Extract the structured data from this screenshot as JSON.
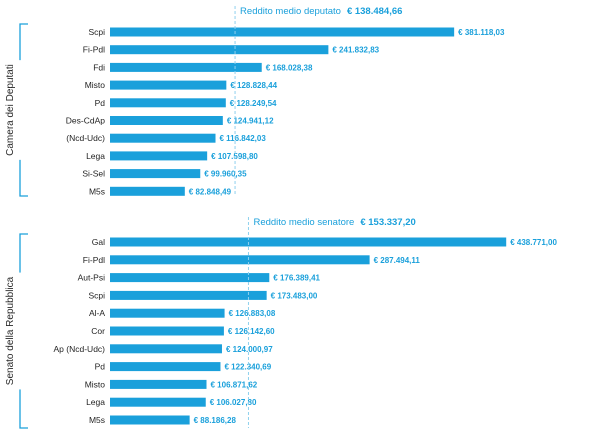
{
  "colors": {
    "bar": "#1aa0db",
    "bracket": "#1aa0db",
    "refline": "#8fd0ee"
  },
  "chart_data": [
    {
      "type": "bar",
      "orientation": "horizontal",
      "title": "Camera dei Deputati",
      "categories": [
        "Scpi",
        "Fi-Pdl",
        "Fdi",
        "Misto",
        "Pd",
        "Des-CdAp",
        "(Ncd-Udc)",
        "Lega",
        "Si-Sel",
        "M5s"
      ],
      "values": [
        381118.03,
        241832.83,
        168028.38,
        128828.44,
        128249.54,
        124941.12,
        116842.03,
        107598.8,
        99960.35,
        82848.49
      ],
      "labels": [
        "€ 381.118,03",
        "€ 241.832,83",
        "€ 168.028,38",
        "€ 128.828,44",
        "€ 128.249,54",
        "€ 124.941,12",
        "€ 116.842,03",
        "€ 107.598,80",
        "€ 99.960,35",
        "€ 82.848,49"
      ],
      "reference": {
        "label": "Reddito medio deputato",
        "value": 138484.66,
        "value_label": "€ 138.484,66"
      }
    },
    {
      "type": "bar",
      "orientation": "horizontal",
      "title": "Senato della Repubblica",
      "categories": [
        "Gal",
        "Fi-Pdl",
        "Aut-Psi",
        "Scpi",
        "Al-A",
        "Cor",
        "Ap (Ncd-Udc)",
        "Pd",
        "Misto",
        "Lega",
        "M5s"
      ],
      "values": [
        438771.0,
        287494.11,
        176389.41,
        173483.0,
        126883.08,
        126142.6,
        124000.97,
        122340.69,
        106871.62,
        106027.8,
        88186.28
      ],
      "labels": [
        "€ 438.771,00",
        "€ 287.494,11",
        "€ 176.389,41",
        "€ 173.483,00",
        "€ 126.883,08",
        "€ 126.142,60",
        "€ 124.000,97",
        "€ 122.340,69",
        "€ 106.871,62",
        "€ 106.027,80",
        "€ 88.186,28"
      ],
      "reference": {
        "label": "Reddito medio senatore",
        "value": 153337.2,
        "value_label": "€ 153.337,20"
      }
    }
  ]
}
